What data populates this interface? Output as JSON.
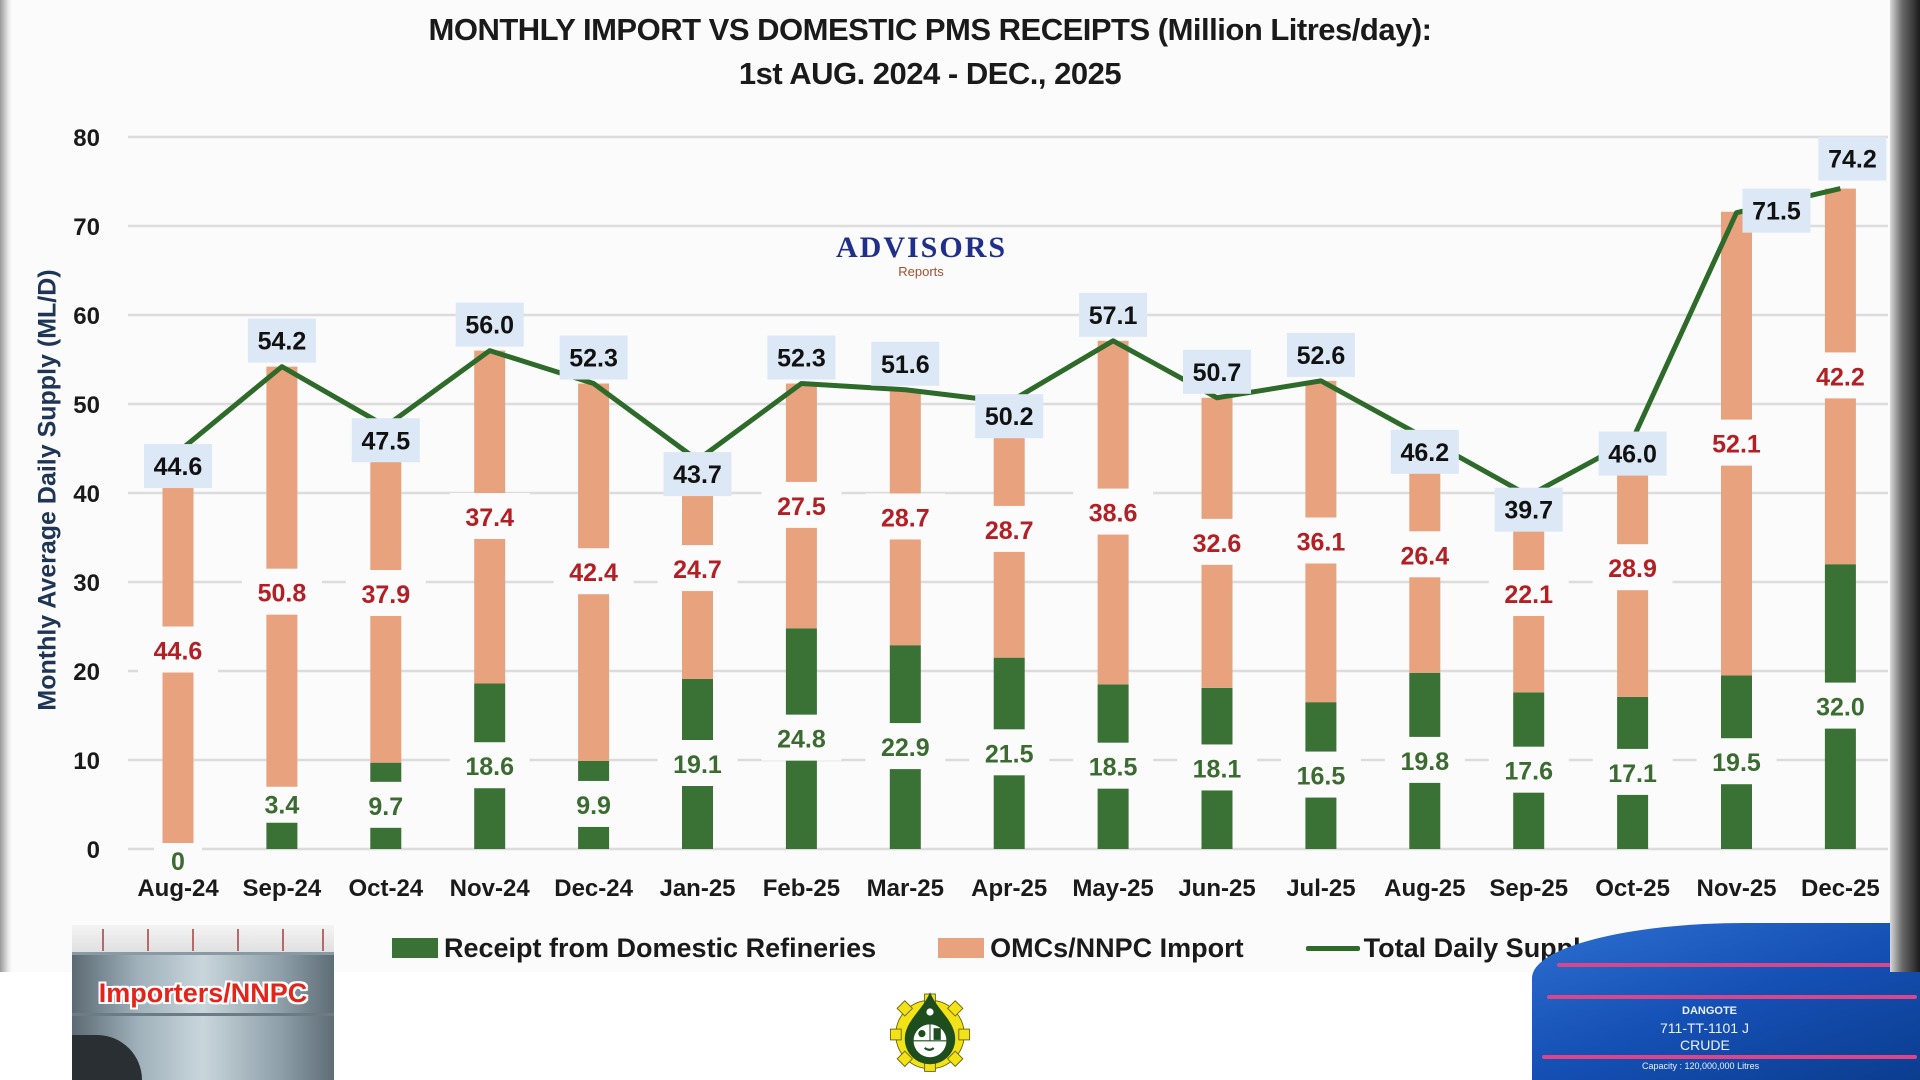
{
  "chart_data": {
    "type": "bar",
    "stacked": true,
    "title": "MONTHLY IMPORT VS DOMESTIC PMS RECEIPTS (Million Litres/day):",
    "subtitle": "1st AUG. 2024 -  DEC., 2025",
    "xlabel": "",
    "ylabel": "Monthly Average Daily Supply  (ML/D)",
    "ylim": [
      0,
      80
    ],
    "yticks": [
      0,
      10,
      20,
      30,
      40,
      50,
      60,
      70,
      80
    ],
    "grid": true,
    "legend_position": "bottom",
    "categories": [
      "Aug-24",
      "Sep-24",
      "Oct-24",
      "Nov-24",
      "Dec-24",
      "Jan-25",
      "Feb-25",
      "Mar-25",
      "Apr-25",
      "May-25",
      "Jun-25",
      "Jul-25",
      "Aug-25",
      "Sep-25",
      "Oct-25",
      "Nov-25",
      "Dec-25"
    ],
    "series": [
      {
        "name": "Receipt from Domestic Refineries",
        "type": "bar",
        "color": "#3a7236",
        "values": [
          0,
          3.4,
          9.7,
          18.6,
          9.9,
          19.1,
          24.8,
          22.9,
          21.5,
          18.5,
          18.1,
          16.5,
          19.8,
          17.6,
          17.1,
          19.5,
          32.0
        ]
      },
      {
        "name": "OMCs/NNPC Import",
        "type": "bar",
        "color": "#e8a27e",
        "values": [
          44.6,
          50.8,
          37.9,
          37.4,
          42.4,
          24.7,
          27.5,
          28.7,
          28.7,
          38.6,
          32.6,
          36.1,
          26.4,
          22.1,
          28.9,
          52.1,
          42.2
        ]
      },
      {
        "name": "Total Daily Supply",
        "type": "line",
        "color": "#2e6b2a",
        "values": [
          44.6,
          54.2,
          47.5,
          56.0,
          52.3,
          43.7,
          52.3,
          51.6,
          50.2,
          57.1,
          50.7,
          52.6,
          46.2,
          39.7,
          46.0,
          71.5,
          74.2
        ]
      }
    ]
  },
  "colors": {
    "import_label": "#b21f24",
    "domestic_label": "#3b6b30",
    "total_label_bg": "#dce8f5",
    "grid": "#dcdcdc"
  },
  "watermark": {
    "main": "ADVISORS",
    "sub": "Reports"
  },
  "footer": {
    "left_image_label": "Importers/NNPC",
    "right_tank_brand": "DANGOTE",
    "right_tank_id": "711-TT-1101 J",
    "right_tank_product": "CRUDE",
    "right_tank_capacity": "Capacity : 120,000,000 Litres",
    "center_logo": "regulator-seal-icon"
  }
}
